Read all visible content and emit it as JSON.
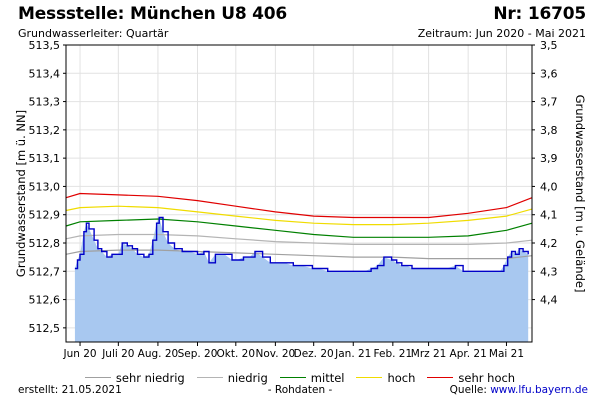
{
  "header": {
    "title": "Messstelle: München U8 406",
    "number": "Nr: 16705",
    "aquifer": "Grundwasserleiter: Quartär",
    "period": "Zeitraum: Jun 2020 - Mai 2021"
  },
  "footer": {
    "created": "erstellt:  21.05.2021",
    "raw_note": "- Rohdaten -",
    "source_label": "Quelle: ",
    "source_link": "www.lfu.bayern.de"
  },
  "colors": {
    "fill": "#a8c8f0",
    "measured_line": "#0000c8",
    "sehr_niedrig": "#a0a0a0",
    "niedrig": "#b4b4b4",
    "mittel": "#008000",
    "hoch": "#f0dc00",
    "sehr_hoch": "#e00000"
  },
  "legend": [
    {
      "key": "sehr_niedrig",
      "label": "sehr niedrig"
    },
    {
      "key": "niedrig",
      "label": "niedrig"
    },
    {
      "key": "mittel",
      "label": "mittel"
    },
    {
      "key": "hoch",
      "label": "hoch"
    },
    {
      "key": "sehr_hoch",
      "label": "sehr hoch"
    }
  ],
  "chart_data": {
    "type": "area",
    "ylabel": "Grundwasserstand [m ü. NN]",
    "ylabel_right": "Grundwasserstand [m u. Gelände]",
    "ylim": [
      512.45,
      513.5
    ],
    "y_ticks": [
      "513,5",
      "513,4",
      "513,3",
      "513,2",
      "513,1",
      "513,0",
      "512,9",
      "512,8",
      "512,7",
      "512,6",
      "512,5"
    ],
    "y_tick_values": [
      513.5,
      513.4,
      513.3,
      513.2,
      513.1,
      513.0,
      512.9,
      512.8,
      512.7,
      512.6,
      512.5
    ],
    "y_right_ticks": [
      "3,5",
      "3,6",
      "3,7",
      "3,8",
      "3,9",
      "4,0",
      "4,1",
      "4,2",
      "4,3",
      "4,4"
    ],
    "y_right_tick_values": [
      3.5,
      3.6,
      3.7,
      3.8,
      3.9,
      4.0,
      4.1,
      4.2,
      4.3,
      4.4
    ],
    "ground_level": 517.0,
    "x_range": [
      "2020-05-21",
      "2021-05-21"
    ],
    "x_tick_dates": [
      "2020-06-01",
      "2020-07-01",
      "2020-08-01",
      "2020-09-01",
      "2020-10-01",
      "2020-11-01",
      "2020-12-01",
      "2021-01-01",
      "2021-02-01",
      "2021-03-01",
      "2021-04-01",
      "2021-05-01"
    ],
    "x_tick_labels": [
      "Jun 20",
      "Juli 20",
      "Aug. 20",
      "Sep. 20",
      "Okt. 20",
      "Nov. 20",
      "Dez. 20",
      "Jan. 21",
      "Feb. 21",
      "Mrz 21",
      "Apr. 21",
      "Mai 21"
    ],
    "measured": {
      "name": "Grundwasserstand",
      "x": [
        "2020-05-28",
        "2020-05-30",
        "2020-06-01",
        "2020-06-04",
        "2020-06-06",
        "2020-06-08",
        "2020-06-12",
        "2020-06-15",
        "2020-06-18",
        "2020-06-22",
        "2020-06-26",
        "2020-07-01",
        "2020-07-04",
        "2020-07-08",
        "2020-07-12",
        "2020-07-16",
        "2020-07-21",
        "2020-07-25",
        "2020-07-28",
        "2020-07-31",
        "2020-08-02",
        "2020-08-05",
        "2020-08-09",
        "2020-08-14",
        "2020-08-20",
        "2020-08-26",
        "2020-09-01",
        "2020-09-06",
        "2020-09-10",
        "2020-09-15",
        "2020-09-22",
        "2020-09-28",
        "2020-10-02",
        "2020-10-07",
        "2020-10-12",
        "2020-10-16",
        "2020-10-22",
        "2020-10-28",
        "2020-11-01",
        "2020-11-08",
        "2020-11-15",
        "2020-11-22",
        "2020-11-30",
        "2020-12-05",
        "2020-12-12",
        "2020-12-20",
        "2020-12-28",
        "2021-01-04",
        "2021-01-10",
        "2021-01-15",
        "2021-01-20",
        "2021-01-25",
        "2021-01-31",
        "2021-02-04",
        "2021-02-08",
        "2021-02-12",
        "2021-02-16",
        "2021-02-22",
        "2021-03-01",
        "2021-03-08",
        "2021-03-15",
        "2021-03-22",
        "2021-03-28",
        "2021-04-03",
        "2021-04-10",
        "2021-04-18",
        "2021-04-26",
        "2021-04-29",
        "2021-05-02",
        "2021-05-05",
        "2021-05-08",
        "2021-05-11",
        "2021-05-14",
        "2021-05-18"
      ],
      "y": [
        512.71,
        512.74,
        512.76,
        512.84,
        512.87,
        512.85,
        512.81,
        512.78,
        512.77,
        512.75,
        512.76,
        512.76,
        512.8,
        512.79,
        512.78,
        512.76,
        512.75,
        512.76,
        512.81,
        512.87,
        512.89,
        512.84,
        512.8,
        512.78,
        512.77,
        512.77,
        512.76,
        512.77,
        512.73,
        512.76,
        512.76,
        512.74,
        512.74,
        512.75,
        512.75,
        512.77,
        512.75,
        512.73,
        512.73,
        512.73,
        512.72,
        512.72,
        512.71,
        512.71,
        512.7,
        512.7,
        512.7,
        512.7,
        512.7,
        512.71,
        512.72,
        512.75,
        512.74,
        512.73,
        512.72,
        512.72,
        512.71,
        512.71,
        512.71,
        512.71,
        512.71,
        512.72,
        512.7,
        512.7,
        512.7,
        512.7,
        512.7,
        512.72,
        512.75,
        512.77,
        512.76,
        512.78,
        512.77,
        512.76
      ]
    },
    "series": [
      {
        "key": "sehr_hoch",
        "name": "sehr hoch",
        "x": [
          "2020-05-21",
          "2020-06-01",
          "2020-07-01",
          "2020-08-01",
          "2020-09-01",
          "2020-10-01",
          "2020-11-01",
          "2020-12-01",
          "2021-01-01",
          "2021-02-01",
          "2021-03-01",
          "2021-04-01",
          "2021-05-01",
          "2021-05-21"
        ],
        "y": [
          512.96,
          512.975,
          512.97,
          512.965,
          512.95,
          512.93,
          512.91,
          512.895,
          512.89,
          512.89,
          512.89,
          512.905,
          512.925,
          512.96
        ]
      },
      {
        "key": "hoch",
        "name": "hoch",
        "x": [
          "2020-05-21",
          "2020-06-01",
          "2020-07-01",
          "2020-08-01",
          "2020-09-01",
          "2020-10-01",
          "2020-11-01",
          "2020-12-01",
          "2021-01-01",
          "2021-02-01",
          "2021-03-01",
          "2021-04-01",
          "2021-05-01",
          "2021-05-21"
        ],
        "y": [
          512.915,
          512.925,
          512.93,
          512.925,
          512.91,
          512.895,
          512.88,
          512.87,
          512.865,
          512.865,
          512.87,
          512.88,
          512.895,
          512.92
        ]
      },
      {
        "key": "mittel",
        "name": "mittel",
        "x": [
          "2020-05-21",
          "2020-06-01",
          "2020-07-01",
          "2020-08-01",
          "2020-09-01",
          "2020-10-01",
          "2020-11-01",
          "2020-12-01",
          "2021-01-01",
          "2021-02-01",
          "2021-03-01",
          "2021-04-01",
          "2021-05-01",
          "2021-05-21"
        ],
        "y": [
          512.86,
          512.875,
          512.88,
          512.885,
          512.875,
          512.86,
          512.845,
          512.83,
          512.82,
          512.82,
          512.82,
          512.825,
          512.845,
          512.87
        ]
      },
      {
        "key": "niedrig",
        "name": "niedrig",
        "x": [
          "2020-05-21",
          "2020-06-01",
          "2020-07-01",
          "2020-08-01",
          "2020-09-01",
          "2020-10-01",
          "2020-11-01",
          "2020-12-01",
          "2021-01-01",
          "2021-02-01",
          "2021-03-01",
          "2021-04-01",
          "2021-05-01",
          "2021-05-21"
        ],
        "y": [
          512.815,
          512.825,
          512.83,
          512.83,
          512.825,
          512.815,
          512.805,
          512.8,
          512.795,
          512.795,
          512.795,
          512.795,
          512.8,
          512.81
        ]
      },
      {
        "key": "sehr_niedrig",
        "name": "sehr niedrig",
        "x": [
          "2020-05-21",
          "2020-06-01",
          "2020-07-01",
          "2020-08-01",
          "2020-09-01",
          "2020-10-01",
          "2020-11-01",
          "2020-12-01",
          "2021-01-01",
          "2021-02-01",
          "2021-03-01",
          "2021-04-01",
          "2021-05-01",
          "2021-05-21"
        ],
        "y": [
          512.76,
          512.77,
          512.775,
          512.775,
          512.77,
          512.765,
          512.76,
          512.755,
          512.75,
          512.75,
          512.745,
          512.745,
          512.745,
          512.755
        ]
      }
    ],
    "grid": true,
    "legend_position": "bottom"
  }
}
